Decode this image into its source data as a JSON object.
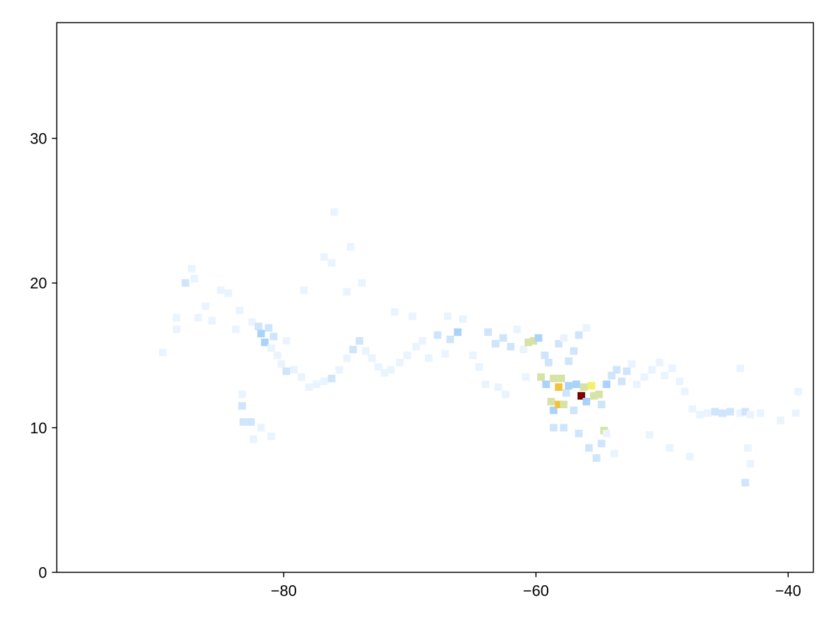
{
  "chart_data": {
    "type": "heatmap",
    "title": "",
    "xlabel": "",
    "ylabel": "",
    "xlim": [
      -98,
      -38
    ],
    "ylim": [
      0,
      38
    ],
    "xticks": [
      {
        "value": -80,
        "label": "−80"
      },
      {
        "value": -60,
        "label": "−60"
      },
      {
        "value": -40,
        "label": "−40"
      }
    ],
    "yticks": [
      {
        "value": 0,
        "label": "0"
      },
      {
        "value": 10,
        "label": "10"
      },
      {
        "value": 20,
        "label": "20"
      },
      {
        "value": 30,
        "label": "30"
      }
    ],
    "grid": false,
    "bin_size": [
      0.6,
      0.52
    ],
    "colorscale": [
      "#eaf4ff",
      "#cfe5fb",
      "#a9d3fa",
      "#d7e3a6",
      "#f4f06a",
      "#f2c23a",
      "#d46a0c",
      "#7a0000"
    ],
    "bins": [
      [
        -89.6,
        15.2,
        1
      ],
      [
        -88.5,
        16.8,
        1
      ],
      [
        -88.5,
        17.6,
        1
      ],
      [
        -87.8,
        20,
        2
      ],
      [
        -87.3,
        21,
        1
      ],
      [
        -87.1,
        20.3,
        1
      ],
      [
        -86.8,
        17.6,
        1
      ],
      [
        -86.2,
        18.4,
        1
      ],
      [
        -85.7,
        17.4,
        1
      ],
      [
        -85.0,
        19.5,
        1
      ],
      [
        -84.4,
        19.3,
        1
      ],
      [
        -83.8,
        16.8,
        1
      ],
      [
        -83.5,
        18.1,
        1
      ],
      [
        -83.3,
        12.3,
        1
      ],
      [
        -83.3,
        11.5,
        2
      ],
      [
        -83.2,
        10.4,
        2
      ],
      [
        -82.6,
        10.4,
        2
      ],
      [
        -82.5,
        17.3,
        1
      ],
      [
        -82.0,
        17.0,
        2
      ],
      [
        -81.8,
        16.5,
        3
      ],
      [
        -81.5,
        15.9,
        3
      ],
      [
        -81.2,
        16.9,
        2
      ],
      [
        -81.0,
        15.5,
        1
      ],
      [
        -80.8,
        16.3,
        2
      ],
      [
        -80.5,
        15.0,
        1
      ],
      [
        -80.2,
        14.4,
        1
      ],
      [
        -79.8,
        13.9,
        2
      ],
      [
        -79.2,
        14.0,
        1
      ],
      [
        -78.6,
        13.5,
        1
      ],
      [
        -78.0,
        12.8,
        1
      ],
      [
        -77.4,
        13.0,
        1
      ],
      [
        -76.8,
        13.2,
        1
      ],
      [
        -76.2,
        13.4,
        2
      ],
      [
        -76.0,
        24.9,
        1
      ],
      [
        -75.6,
        14.0,
        1
      ],
      [
        -75.0,
        14.8,
        1
      ],
      [
        -74.7,
        22.5,
        1
      ],
      [
        -74.5,
        15.4,
        2
      ],
      [
        -74.0,
        16.0,
        2
      ],
      [
        -73.5,
        15.3,
        1
      ],
      [
        -73.0,
        14.8,
        1
      ],
      [
        -72.5,
        14.2,
        1
      ],
      [
        -72.0,
        13.8,
        1
      ],
      [
        -71.5,
        14.0,
        1
      ],
      [
        -70.8,
        14.5,
        1
      ],
      [
        -70.2,
        15.0,
        1
      ],
      [
        -69.5,
        15.6,
        1
      ],
      [
        -69.0,
        16.0,
        1
      ],
      [
        -68.5,
        14.8,
        1
      ],
      [
        -67.8,
        16.4,
        2
      ],
      [
        -67.2,
        15.1,
        1
      ],
      [
        -66.8,
        16.1,
        2
      ],
      [
        -66.2,
        16.6,
        3
      ],
      [
        -65.8,
        17.5,
        1
      ],
      [
        -65.0,
        15.0,
        1
      ],
      [
        -64.5,
        14.2,
        1
      ],
      [
        -63.8,
        16.6,
        2
      ],
      [
        -63.2,
        15.8,
        2
      ],
      [
        -62.6,
        16.2,
        2
      ],
      [
        -62.0,
        15.6,
        2
      ],
      [
        -61.5,
        16.8,
        1
      ],
      [
        -61.0,
        15.4,
        1
      ],
      [
        -60.6,
        15.9,
        4
      ],
      [
        -60.2,
        16.0,
        4
      ],
      [
        -59.8,
        16.2,
        3
      ],
      [
        -59.6,
        13.5,
        4
      ],
      [
        -59.3,
        15.0,
        2
      ],
      [
        -59.2,
        13.0,
        3
      ],
      [
        -59.0,
        14.5,
        2
      ],
      [
        -58.8,
        11.8,
        4
      ],
      [
        -58.6,
        13.4,
        4
      ],
      [
        -58.6,
        11.2,
        3
      ],
      [
        -58.2,
        12.8,
        6
      ],
      [
        -58.2,
        11.6,
        6
      ],
      [
        -58.0,
        13.4,
        4
      ],
      [
        -57.8,
        11.6,
        4
      ],
      [
        -57.6,
        12.4,
        2
      ],
      [
        -57.4,
        12.9,
        3
      ],
      [
        -57.0,
        11.2,
        2
      ],
      [
        -56.8,
        13.0,
        3
      ],
      [
        -56.4,
        12.2,
        8
      ],
      [
        -56.2,
        12.8,
        4
      ],
      [
        -56.0,
        11.8,
        3
      ],
      [
        -55.6,
        12.9,
        5
      ],
      [
        -55.4,
        12.2,
        4
      ],
      [
        -55.0,
        12.3,
        4
      ],
      [
        -54.8,
        11.6,
        2
      ],
      [
        -54.6,
        9.8,
        4
      ],
      [
        -54.4,
        13.0,
        3
      ],
      [
        -54.0,
        13.6,
        2
      ],
      [
        -53.6,
        14.0,
        2
      ],
      [
        -53.2,
        13.2,
        2
      ],
      [
        -52.8,
        13.9,
        2
      ],
      [
        -52.4,
        14.4,
        1
      ],
      [
        -52.0,
        13.0,
        1
      ],
      [
        -51.4,
        13.5,
        1
      ],
      [
        -50.8,
        14.0,
        1
      ],
      [
        -50.2,
        14.5,
        1
      ],
      [
        -49.8,
        13.6,
        1
      ],
      [
        -49.2,
        14.1,
        1
      ],
      [
        -48.6,
        13.2,
        1
      ],
      [
        -48.2,
        12.5,
        1
      ],
      [
        -47.6,
        11.3,
        1
      ],
      [
        -47.0,
        10.9,
        1
      ],
      [
        -46.4,
        11.0,
        1
      ],
      [
        -45.8,
        11.1,
        2
      ],
      [
        -45.2,
        11.0,
        2
      ],
      [
        -44.6,
        11.1,
        2
      ],
      [
        -43.8,
        14.1,
        1
      ],
      [
        -43.8,
        11.0,
        1
      ],
      [
        -43.4,
        11.1,
        2
      ],
      [
        -43.0,
        10.9,
        1
      ],
      [
        -42.2,
        11.0,
        1
      ],
      [
        -40.6,
        10.5,
        1
      ],
      [
        -39.4,
        11.0,
        1
      ],
      [
        -39.2,
        12.5,
        1
      ],
      [
        -58.6,
        10.0,
        2
      ],
      [
        -57.8,
        10.0,
        2
      ],
      [
        -56.6,
        9.6,
        2
      ],
      [
        -55.8,
        8.6,
        2
      ],
      [
        -55.2,
        7.9,
        2
      ],
      [
        -54.8,
        8.9,
        2
      ],
      [
        -54.4,
        9.6,
        1
      ],
      [
        -53.8,
        8.2,
        1
      ],
      [
        -57.4,
        14.6,
        2
      ],
      [
        -57.0,
        15.3,
        2
      ],
      [
        -56.6,
        16.4,
        2
      ],
      [
        -56.0,
        16.9,
        1
      ],
      [
        -58.2,
        15.8,
        2
      ],
      [
        -57.8,
        16.2,
        1
      ],
      [
        -62.4,
        12.3,
        1
      ],
      [
        -60.8,
        13.5,
        1
      ],
      [
        -64.0,
        13.0,
        1
      ],
      [
        -63.0,
        12.8,
        1
      ],
      [
        -51.0,
        9.5,
        1
      ],
      [
        -49.4,
        8.6,
        1
      ],
      [
        -47.8,
        8.0,
        1
      ],
      [
        -43.2,
        8.6,
        1
      ],
      [
        -43.4,
        6.2,
        2
      ],
      [
        -43.0,
        7.5,
        1
      ],
      [
        -67.0,
        17.7,
        1
      ],
      [
        -69.8,
        17.7,
        1
      ],
      [
        -71.2,
        18.0,
        1
      ],
      [
        -73.8,
        20.0,
        1
      ],
      [
        -75.0,
        19.4,
        1
      ],
      [
        -76.2,
        21.4,
        1
      ],
      [
        -76.8,
        21.8,
        1
      ],
      [
        -78.4,
        19.5,
        1
      ],
      [
        -79.8,
        16.0,
        1
      ],
      [
        -81.8,
        10.0,
        1
      ],
      [
        -81.0,
        9.4,
        1
      ],
      [
        -82.4,
        9.2,
        1
      ]
    ]
  }
}
